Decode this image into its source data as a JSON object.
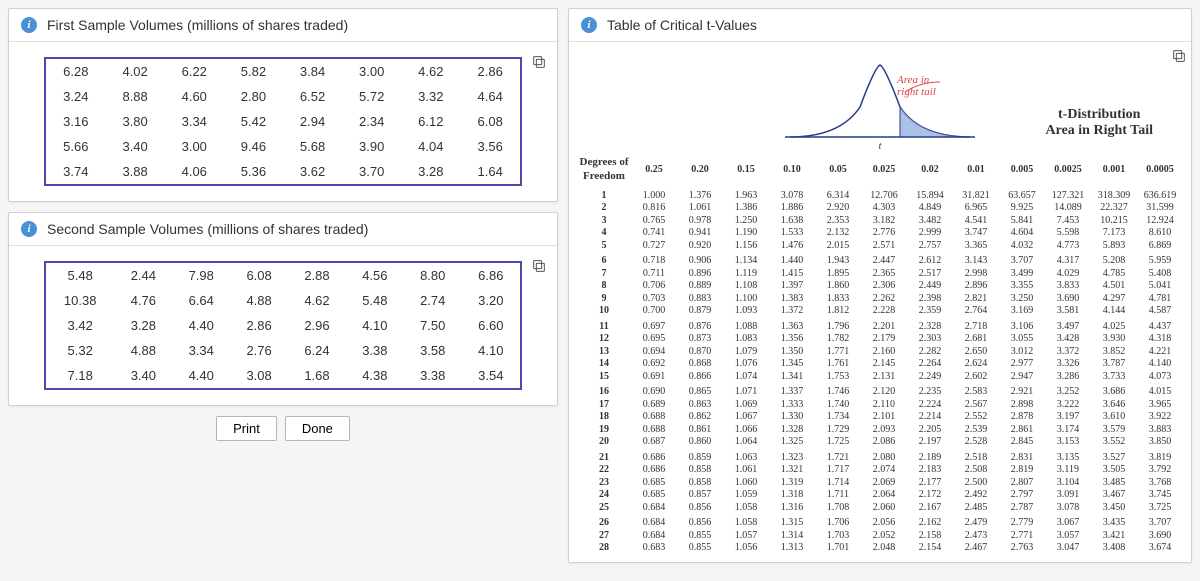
{
  "panels": {
    "first_sample": {
      "title": "First Sample Volumes (millions of shares traded)",
      "rows": [
        [
          "6.28",
          "4.02",
          "6.22",
          "5.82",
          "3.84",
          "3.00",
          "4.62",
          "2.86"
        ],
        [
          "3.24",
          "8.88",
          "4.60",
          "2.80",
          "6.52",
          "5.72",
          "3.32",
          "4.64"
        ],
        [
          "3.16",
          "3.80",
          "3.34",
          "5.42",
          "2.94",
          "2.34",
          "6.12",
          "6.08"
        ],
        [
          "5.66",
          "3.40",
          "3.00",
          "9.46",
          "5.68",
          "3.90",
          "4.04",
          "3.56"
        ],
        [
          "3.74",
          "3.88",
          "4.06",
          "5.36",
          "3.62",
          "3.70",
          "3.28",
          "1.64"
        ]
      ]
    },
    "second_sample": {
      "title": "Second Sample Volumes (millions of shares traded)",
      "rows": [
        [
          "5.48",
          "2.44",
          "7.98",
          "6.08",
          "2.88",
          "4.56",
          "8.80",
          "6.86"
        ],
        [
          "10.38",
          "4.76",
          "6.64",
          "4.88",
          "4.62",
          "5.48",
          "2.74",
          "3.20"
        ],
        [
          "3.42",
          "3.28",
          "4.40",
          "2.86",
          "2.96",
          "4.10",
          "7.50",
          "6.60"
        ],
        [
          "5.32",
          "4.88",
          "3.34",
          "2.76",
          "6.24",
          "3.38",
          "3.58",
          "4.10"
        ],
        [
          "7.18",
          "3.40",
          "4.40",
          "3.08",
          "1.68",
          "4.38",
          "3.38",
          "3.54"
        ]
      ]
    },
    "t_table": {
      "title": "Table of Critical t-Values",
      "dist_title_1": "t-Distribution",
      "dist_title_2": "Area in Right Tail",
      "area_label_1": "Area in",
      "area_label_2": "right tail",
      "df_head_1": "Degrees of",
      "df_head_2": "Freedom",
      "alphas": [
        "0.25",
        "0.20",
        "0.15",
        "0.10",
        "0.05",
        "0.025",
        "0.02",
        "0.01",
        "0.005",
        "0.0025",
        "0.001",
        "0.0005"
      ],
      "rows": [
        {
          "df": "1",
          "v": [
            "1.000",
            "1.376",
            "1.963",
            "3.078",
            "6.314",
            "12.706",
            "15.894",
            "31.821",
            "63.657",
            "127.321",
            "318.309",
            "636.619"
          ]
        },
        {
          "df": "2",
          "v": [
            "0.816",
            "1.061",
            "1.386",
            "1.886",
            "2.920",
            "4.303",
            "4.849",
            "6.965",
            "9.925",
            "14.089",
            "22.327",
            "31.599"
          ]
        },
        {
          "df": "3",
          "v": [
            "0.765",
            "0.978",
            "1.250",
            "1.638",
            "2.353",
            "3.182",
            "3.482",
            "4.541",
            "5.841",
            "7.453",
            "10.215",
            "12.924"
          ]
        },
        {
          "df": "4",
          "v": [
            "0.741",
            "0.941",
            "1.190",
            "1.533",
            "2.132",
            "2.776",
            "2.999",
            "3.747",
            "4.604",
            "5.598",
            "7.173",
            "8.610"
          ]
        },
        {
          "df": "5",
          "v": [
            "0.727",
            "0.920",
            "1.156",
            "1.476",
            "2.015",
            "2.571",
            "2.757",
            "3.365",
            "4.032",
            "4.773",
            "5.893",
            "6.869"
          ]
        },
        {
          "df": "6",
          "v": [
            "0.718",
            "0.906",
            "1.134",
            "1.440",
            "1.943",
            "2.447",
            "2.612",
            "3.143",
            "3.707",
            "4.317",
            "5.208",
            "5.959"
          ]
        },
        {
          "df": "7",
          "v": [
            "0.711",
            "0.896",
            "1.119",
            "1.415",
            "1.895",
            "2.365",
            "2.517",
            "2.998",
            "3.499",
            "4.029",
            "4.785",
            "5.408"
          ]
        },
        {
          "df": "8",
          "v": [
            "0.706",
            "0.889",
            "1.108",
            "1.397",
            "1.860",
            "2.306",
            "2.449",
            "2.896",
            "3.355",
            "3.833",
            "4.501",
            "5.041"
          ]
        },
        {
          "df": "9",
          "v": [
            "0.703",
            "0.883",
            "1.100",
            "1.383",
            "1.833",
            "2.262",
            "2.398",
            "2.821",
            "3.250",
            "3.690",
            "4.297",
            "4.781"
          ]
        },
        {
          "df": "10",
          "v": [
            "0.700",
            "0.879",
            "1.093",
            "1.372",
            "1.812",
            "2.228",
            "2.359",
            "2.764",
            "3.169",
            "3.581",
            "4.144",
            "4.587"
          ]
        },
        {
          "df": "11",
          "v": [
            "0.697",
            "0.876",
            "1.088",
            "1.363",
            "1.796",
            "2.201",
            "2.328",
            "2.718",
            "3.106",
            "3.497",
            "4.025",
            "4.437"
          ]
        },
        {
          "df": "12",
          "v": [
            "0.695",
            "0.873",
            "1.083",
            "1.356",
            "1.782",
            "2.179",
            "2.303",
            "2.681",
            "3.055",
            "3.428",
            "3.930",
            "4.318"
          ]
        },
        {
          "df": "13",
          "v": [
            "0.694",
            "0.870",
            "1.079",
            "1.350",
            "1.771",
            "2.160",
            "2.282",
            "2.650",
            "3.012",
            "3.372",
            "3.852",
            "4.221"
          ]
        },
        {
          "df": "14",
          "v": [
            "0.692",
            "0.868",
            "1.076",
            "1.345",
            "1.761",
            "2.145",
            "2.264",
            "2.624",
            "2.977",
            "3.326",
            "3.787",
            "4.140"
          ]
        },
        {
          "df": "15",
          "v": [
            "0.691",
            "0.866",
            "1.074",
            "1.341",
            "1.753",
            "2.131",
            "2.249",
            "2.602",
            "2.947",
            "3.286",
            "3.733",
            "4.073"
          ]
        },
        {
          "df": "16",
          "v": [
            "0.690",
            "0.865",
            "1.071",
            "1.337",
            "1.746",
            "2.120",
            "2.235",
            "2.583",
            "2.921",
            "3.252",
            "3.686",
            "4.015"
          ]
        },
        {
          "df": "17",
          "v": [
            "0.689",
            "0.863",
            "1.069",
            "1.333",
            "1.740",
            "2.110",
            "2.224",
            "2.567",
            "2.898",
            "3.222",
            "3.646",
            "3.965"
          ]
        },
        {
          "df": "18",
          "v": [
            "0.688",
            "0.862",
            "1.067",
            "1.330",
            "1.734",
            "2.101",
            "2.214",
            "2.552",
            "2.878",
            "3.197",
            "3.610",
            "3.922"
          ]
        },
        {
          "df": "19",
          "v": [
            "0.688",
            "0.861",
            "1.066",
            "1.328",
            "1.729",
            "2.093",
            "2.205",
            "2.539",
            "2.861",
            "3.174",
            "3.579",
            "3.883"
          ]
        },
        {
          "df": "20",
          "v": [
            "0.687",
            "0.860",
            "1.064",
            "1.325",
            "1.725",
            "2.086",
            "2.197",
            "2.528",
            "2.845",
            "3.153",
            "3.552",
            "3.850"
          ]
        },
        {
          "df": "21",
          "v": [
            "0.686",
            "0.859",
            "1.063",
            "1.323",
            "1.721",
            "2.080",
            "2.189",
            "2.518",
            "2.831",
            "3.135",
            "3.527",
            "3.819"
          ]
        },
        {
          "df": "22",
          "v": [
            "0.686",
            "0.858",
            "1.061",
            "1.321",
            "1.717",
            "2.074",
            "2.183",
            "2.508",
            "2.819",
            "3.119",
            "3.505",
            "3.792"
          ]
        },
        {
          "df": "23",
          "v": [
            "0.685",
            "0.858",
            "1.060",
            "1.319",
            "1.714",
            "2.069",
            "2.177",
            "2.500",
            "2.807",
            "3.104",
            "3.485",
            "3.768"
          ]
        },
        {
          "df": "24",
          "v": [
            "0.685",
            "0.857",
            "1.059",
            "1.318",
            "1.711",
            "2.064",
            "2.172",
            "2.492",
            "2.797",
            "3.091",
            "3.467",
            "3.745"
          ]
        },
        {
          "df": "25",
          "v": [
            "0.684",
            "0.856",
            "1.058",
            "1.316",
            "1.708",
            "2.060",
            "2.167",
            "2.485",
            "2.787",
            "3.078",
            "3.450",
            "3.725"
          ]
        },
        {
          "df": "26",
          "v": [
            "0.684",
            "0.856",
            "1.058",
            "1.315",
            "1.706",
            "2.056",
            "2.162",
            "2.479",
            "2.779",
            "3.067",
            "3.435",
            "3.707"
          ]
        },
        {
          "df": "27",
          "v": [
            "0.684",
            "0.855",
            "1.057",
            "1.314",
            "1.703",
            "2.052",
            "2.158",
            "2.473",
            "2.771",
            "3.057",
            "3.421",
            "3.690"
          ]
        },
        {
          "df": "28",
          "v": [
            "0.683",
            "0.855",
            "1.056",
            "1.313",
            "1.701",
            "2.048",
            "2.154",
            "2.467",
            "2.763",
            "3.047",
            "3.408",
            "3.674"
          ]
        }
      ],
      "group_starts": [
        1,
        6,
        11,
        16,
        21,
        26
      ]
    }
  },
  "buttons": {
    "print": "Print",
    "done": "Done"
  },
  "colors": {
    "info_icon": "#4a90d9",
    "table_border": "#4a4aaa",
    "area_label": "#d44"
  }
}
